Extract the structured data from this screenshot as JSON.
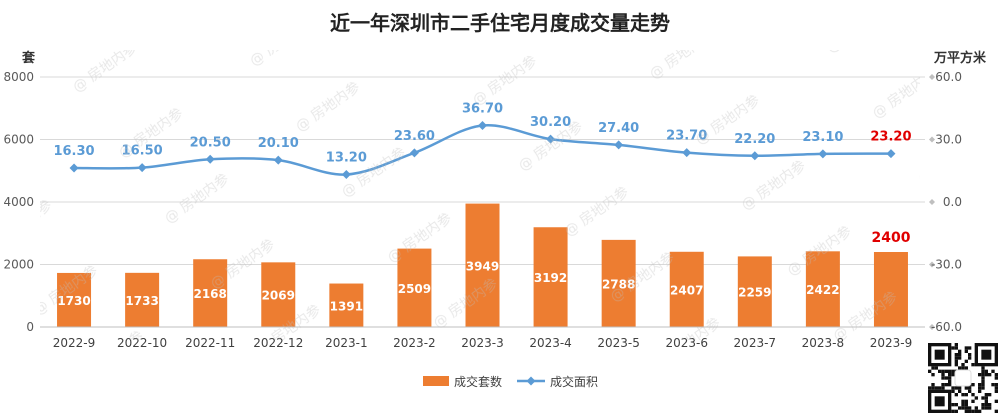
{
  "chart_data": {
    "type": "bar+line",
    "title": "近一年深圳市二手住宅月度成交量走势",
    "left_axis": {
      "unit_label": "套",
      "ylim": [
        0,
        8000
      ],
      "ticks": [
        0,
        2000,
        4000,
        6000,
        8000
      ]
    },
    "right_axis": {
      "unit_label": "万平方米",
      "ylim": [
        -60,
        60
      ],
      "ticks": [
        "-60.0",
        "-30.0",
        "0.0",
        "30.0",
        "60.0"
      ]
    },
    "categories": [
      "2022-9",
      "2022-10",
      "2022-11",
      "2022-12",
      "2023-1",
      "2023-2",
      "2023-3",
      "2023-4",
      "2023-5",
      "2023-6",
      "2023-7",
      "2023-8",
      "2023-9"
    ],
    "series": [
      {
        "name": "成交套数",
        "type": "bar",
        "axis": "left",
        "color": "#ED7D31",
        "values": [
          1730,
          1733,
          2168,
          2069,
          1391,
          2509,
          3949,
          3192,
          2788,
          2407,
          2259,
          2422,
          2400
        ],
        "labels": [
          "1730",
          "1733",
          "2168",
          "2069",
          "1391",
          "2509",
          "3949",
          "3192",
          "2788",
          "2407",
          "2259",
          "2422",
          "2400"
        ]
      },
      {
        "name": "成交面积",
        "type": "line",
        "axis": "right",
        "color": "#5B9BD5",
        "values": [
          16.3,
          16.5,
          20.5,
          20.1,
          13.2,
          23.6,
          36.7,
          30.2,
          27.4,
          23.7,
          22.2,
          23.1,
          23.2
        ],
        "labels": [
          "16.30",
          "16.50",
          "20.50",
          "20.10",
          "13.20",
          "23.60",
          "36.70",
          "30.20",
          "27.40",
          "23.70",
          "22.20",
          "23.10",
          "23.20"
        ]
      }
    ],
    "highlight_color": "#E00000",
    "legend_position": "bottom",
    "grid": true
  },
  "watermark": "房地内参"
}
